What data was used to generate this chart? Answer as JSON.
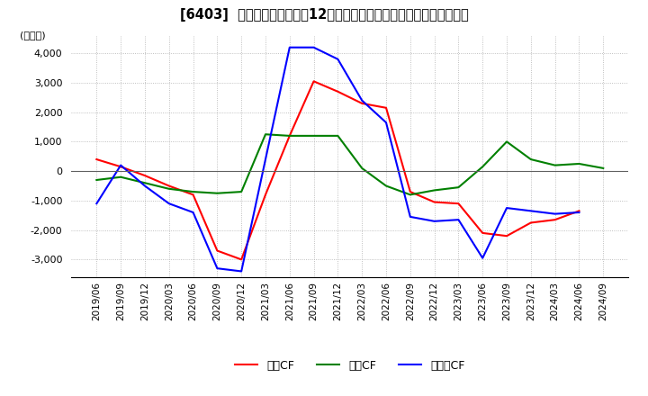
{
  "title": "[6403]  キャッシュフローの12か月移動合計の対前年同期増減額の推移",
  "ylabel": "(百万円)",
  "ylim": [
    -3600,
    4600
  ],
  "yticks": [
    -3000,
    -2000,
    -1000,
    0,
    1000,
    2000,
    3000,
    4000
  ],
  "legend_labels": [
    "営業CF",
    "投資CF",
    "フリーCF"
  ],
  "legend_colors": [
    "#ff0000",
    "#008000",
    "#0000ff"
  ],
  "x_labels": [
    "2019/06",
    "2019/09",
    "2019/12",
    "2020/03",
    "2020/06",
    "2020/09",
    "2020/12",
    "2021/03",
    "2021/06",
    "2021/09",
    "2021/12",
    "2022/03",
    "2022/06",
    "2022/09",
    "2022/12",
    "2023/03",
    "2023/06",
    "2023/09",
    "2023/12",
    "2024/03",
    "2024/06",
    "2024/09"
  ],
  "operating_cf": [
    400,
    150,
    -150,
    -500,
    -800,
    -2700,
    -3000,
    -800,
    1200,
    3050,
    2700,
    2300,
    2150,
    -700,
    -1050,
    -1100,
    -2100,
    -2200,
    -1750,
    -1650,
    -1350,
    null
  ],
  "investing_cf": [
    -300,
    -200,
    -400,
    -600,
    -700,
    -750,
    -700,
    1250,
    1200,
    1200,
    1200,
    100,
    -500,
    -800,
    -650,
    -550,
    150,
    1000,
    400,
    200,
    250,
    100
  ],
  "free_cf": [
    -1100,
    200,
    -500,
    -1100,
    -1400,
    -3300,
    -3400,
    400,
    4200,
    4200,
    3800,
    2400,
    1650,
    -1550,
    -1700,
    -1650,
    -2950,
    -1250,
    -1350,
    -1450,
    -1400,
    null
  ],
  "background_color": "#ffffff",
  "grid_color": "#b0b0b0",
  "grid_style": "dotted"
}
